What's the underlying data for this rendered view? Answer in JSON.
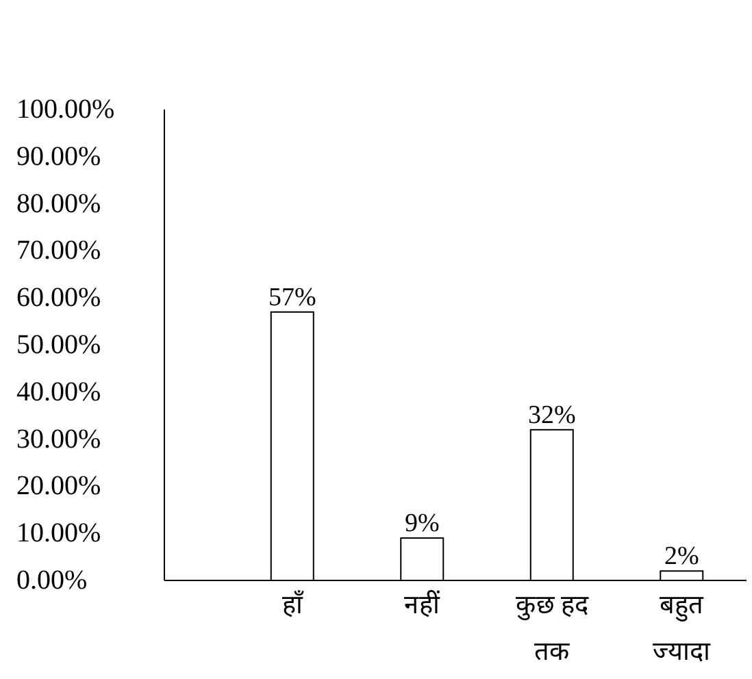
{
  "chart_data": {
    "type": "bar",
    "categories": [
      "हाँ",
      "नहीं",
      "कुछ हद तक",
      "बहुत ज्यादा"
    ],
    "values": [
      57,
      9,
      32,
      2
    ],
    "color": "#ffffff",
    "data_labels": true,
    "value_labels": [
      "57%",
      "9%",
      "32%",
      "2%"
    ],
    "ylim": [
      0,
      100
    ],
    "yticks": [
      {
        "value": 0,
        "label": "0.00%"
      },
      {
        "value": 10,
        "label": "10.00%"
      },
      {
        "value": 20,
        "label": "20.00%"
      },
      {
        "value": 30,
        "label": "30.00%"
      },
      {
        "value": 40,
        "label": "40.00%"
      },
      {
        "value": 50,
        "label": "50.00%"
      },
      {
        "value": 60,
        "label": "60.00%"
      },
      {
        "value": 70,
        "label": "70.00%"
      },
      {
        "value": 80,
        "label": "80.00%"
      },
      {
        "value": 90,
        "label": "90.00%"
      },
      {
        "value": 100,
        "label": "100.00%"
      }
    ],
    "grid": false
  }
}
